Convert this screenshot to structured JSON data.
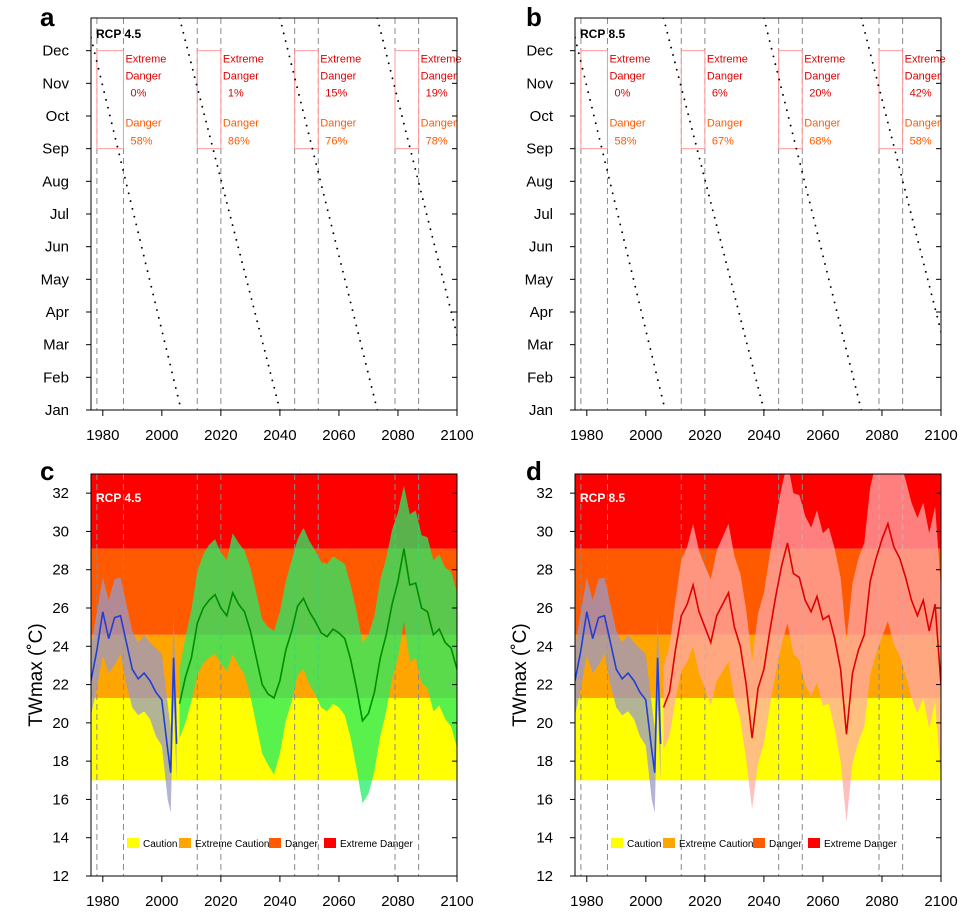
{
  "colors": {
    "caution": "#ffff00",
    "extreme_caution": "#ffa500",
    "danger": "#ff5a00",
    "extreme_danger": "#ff0000",
    "historical_line": "#1f3fd6",
    "historical_band": "#9a9ac8",
    "rcp45_line": "#008c00",
    "rcp45_band": "#22ee66",
    "rcp85_line": "#e00000",
    "rcp85_band": "#ffaaaa",
    "annotation_box": "#ff9a9a",
    "extreme_danger_text": "#e00000",
    "danger_text": "#ff5a00"
  },
  "chart_data": [
    {
      "panel": "a",
      "type": "scatter",
      "title": "RCP 4.5",
      "x_ticks": [
        "1980",
        "2000",
        "2020",
        "2040",
        "2060",
        "2080",
        "2100"
      ],
      "y_ticks": [
        "Jan",
        "Feb",
        "Mar",
        "Apr",
        "May",
        "Jun",
        "Jul",
        "Aug",
        "Sep",
        "Oct",
        "Nov",
        "Dec"
      ],
      "xlim": [
        1976,
        2100
      ],
      "ylim": [
        0,
        12
      ],
      "dashed_x": [
        1978,
        1987,
        2012,
        2020,
        2045,
        2053,
        2079,
        2087
      ],
      "boxes": [
        {
          "x": [
            1978,
            1987
          ],
          "extreme_danger_label": "Extreme\nDanger",
          "extreme_danger": "0%",
          "danger_label": "Danger",
          "danger": "58%"
        },
        {
          "x": [
            2012,
            2020
          ],
          "extreme_danger_label": "Extreme\nDanger",
          "extreme_danger": "1%",
          "danger_label": "Danger",
          "danger": "86%"
        },
        {
          "x": [
            2045,
            2053
          ],
          "extreme_danger_label": "Extreme\nDanger",
          "extreme_danger": "15%",
          "danger_label": "Danger",
          "danger": "76%"
        },
        {
          "x": [
            2079,
            2087
          ],
          "extreme_danger_label": "Extreme\nDanger",
          "extreme_danger": "19%",
          "danger_label": "Danger",
          "danger": "78%"
        }
      ],
      "box_y": [
        8,
        11
      ],
      "segments": [
        {
          "x": [
            1976,
            2006
          ],
          "y": [
            11.4,
            0.2
          ]
        },
        {
          "x": [
            2006,
            2040
          ],
          "y": [
            12.0,
            0.0
          ]
        },
        {
          "x": [
            2040,
            2073
          ],
          "y": [
            12.0,
            0.0
          ]
        },
        {
          "x": [
            2073,
            2100
          ],
          "y": [
            12.0,
            2.3
          ]
        }
      ]
    },
    {
      "panel": "b",
      "type": "scatter",
      "title": "RCP 8.5",
      "x_ticks": [
        "1980",
        "2000",
        "2020",
        "2040",
        "2060",
        "2080",
        "2100"
      ],
      "y_ticks": [
        "Jan",
        "Feb",
        "Mar",
        "Apr",
        "May",
        "Jun",
        "Jul",
        "Aug",
        "Sep",
        "Oct",
        "Nov",
        "Dec"
      ],
      "xlim": [
        1976,
        2100
      ],
      "ylim": [
        0,
        12
      ],
      "dashed_x": [
        1978,
        1987,
        2012,
        2020,
        2045,
        2053,
        2079,
        2087
      ],
      "boxes": [
        {
          "x": [
            1978,
            1987
          ],
          "extreme_danger_label": "Extreme\nDanger",
          "extreme_danger": "0%",
          "danger_label": "Danger",
          "danger": "58%"
        },
        {
          "x": [
            2012,
            2020
          ],
          "extreme_danger_label": "Extreme\nDanger",
          "extreme_danger": "6%",
          "danger_label": "Danger",
          "danger": "67%"
        },
        {
          "x": [
            2045,
            2053
          ],
          "extreme_danger_label": "Extreme\nDanger",
          "extreme_danger": "20%",
          "danger_label": "Danger",
          "danger": "68%"
        },
        {
          "x": [
            2079,
            2087
          ],
          "extreme_danger_label": "Extreme\nDanger",
          "extreme_danger": "42%",
          "danger_label": "Danger",
          "danger": "58%"
        }
      ],
      "box_y": [
        8,
        11
      ],
      "segments": [
        {
          "x": [
            1976,
            2006
          ],
          "y": [
            11.4,
            0.2
          ]
        },
        {
          "x": [
            2006,
            2040
          ],
          "y": [
            12.0,
            0.0
          ]
        },
        {
          "x": [
            2040,
            2073
          ],
          "y": [
            12.0,
            0.0
          ]
        },
        {
          "x": [
            2073,
            2100
          ],
          "y": [
            12.0,
            2.4
          ]
        }
      ]
    },
    {
      "panel": "c",
      "type": "line",
      "title": "RCP 4.5",
      "ylabel": "TWmax (˚C)",
      "x_ticks": [
        "1980",
        "2000",
        "2020",
        "2040",
        "2060",
        "2080",
        "2100"
      ],
      "y_ticks": [
        "12",
        "14",
        "16",
        "18",
        "20",
        "22",
        "24",
        "26",
        "28",
        "30",
        "32"
      ],
      "xlim": [
        1976,
        2100
      ],
      "ylim": [
        12,
        33
      ],
      "dashed_x": [
        1978,
        1987,
        2012,
        2020,
        2045,
        2053,
        2079,
        2087
      ],
      "bands": [
        {
          "name": "Caution",
          "y": [
            17.0,
            21.3
          ],
          "color_key": "caution"
        },
        {
          "name": "Extreme Caution",
          "y": [
            21.3,
            24.6
          ],
          "color_key": "extreme_caution"
        },
        {
          "name": "Danger",
          "y": [
            24.6,
            29.1
          ],
          "color_key": "danger"
        },
        {
          "name": "Extreme Danger",
          "y": [
            29.1,
            33.0
          ],
          "color_key": "extreme_danger"
        }
      ],
      "legend": [
        "Caution",
        "Extreme Caution",
        "Danger",
        "Extreme Danger"
      ],
      "series": [
        {
          "color_key": "historical_line",
          "band_key": "historical_band",
          "x": [
            1976,
            1978,
            1980,
            1982,
            1984,
            1986,
            1988,
            1990,
            1992,
            1994,
            1996,
            1998,
            2000,
            2002,
            2003,
            2004,
            2005
          ],
          "y": [
            22.2,
            23.8,
            25.8,
            24.4,
            25.5,
            25.6,
            24.2,
            22.8,
            22.3,
            22.6,
            22.2,
            21.6,
            21.2,
            18.6,
            17.4,
            23.4,
            18.9
          ],
          "low": [
            20.4,
            21.8,
            23.5,
            22.6,
            23.0,
            23.6,
            22.0,
            20.8,
            20.4,
            20.6,
            20.2,
            19.3,
            18.8,
            16.0,
            15.3,
            21.2,
            16.9
          ],
          "high": [
            24.0,
            25.8,
            27.6,
            26.4,
            27.5,
            27.6,
            26.2,
            24.8,
            24.2,
            24.6,
            24.2,
            23.9,
            23.6,
            21.0,
            19.7,
            25.6,
            21.0
          ]
        },
        {
          "color_key": "rcp45_line",
          "band_key": "rcp45_band",
          "x": [
            2006,
            2008,
            2010,
            2012,
            2014,
            2016,
            2018,
            2020,
            2022,
            2024,
            2026,
            2028,
            2030,
            2032,
            2034,
            2036,
            2038,
            2040,
            2042,
            2044,
            2046,
            2048,
            2050,
            2052,
            2054,
            2056,
            2058,
            2060,
            2062,
            2064,
            2066,
            2068,
            2070,
            2072,
            2074,
            2076,
            2078,
            2080,
            2082,
            2084,
            2086,
            2088,
            2090,
            2092,
            2094,
            2096,
            2098,
            2100
          ],
          "y": [
            21.0,
            22.4,
            23.4,
            25.2,
            26.0,
            26.4,
            26.7,
            26.0,
            25.6,
            26.8,
            26.2,
            25.8,
            24.8,
            23.4,
            22.0,
            21.5,
            21.3,
            22.2,
            23.8,
            24.8,
            26.1,
            26.5,
            25.8,
            25.3,
            24.7,
            24.5,
            24.9,
            24.7,
            24.4,
            23.3,
            21.8,
            20.1,
            20.5,
            21.6,
            23.4,
            24.6,
            26.2,
            27.4,
            29.1,
            27.2,
            27.3,
            26.0,
            25.8,
            24.6,
            24.9,
            24.2,
            23.9,
            22.8
          ],
          "low": [
            19.2,
            20.0,
            21.1,
            22.5,
            23.1,
            23.4,
            23.6,
            23.1,
            22.7,
            23.6,
            23.0,
            22.5,
            21.4,
            19.9,
            18.4,
            17.8,
            17.3,
            18.4,
            20.1,
            21.1,
            22.5,
            22.8,
            22.0,
            21.5,
            20.8,
            20.6,
            21.0,
            20.8,
            20.4,
            19.2,
            17.6,
            15.8,
            16.3,
            17.5,
            19.3,
            20.6,
            22.3,
            23.4,
            25.3,
            23.2,
            23.4,
            22.1,
            21.8,
            20.6,
            20.9,
            20.2,
            19.8,
            18.7
          ],
          "high": [
            22.8,
            24.5,
            25.9,
            27.9,
            28.8,
            29.3,
            29.6,
            28.9,
            28.5,
            29.9,
            29.4,
            29.0,
            28.1,
            26.8,
            25.4,
            25.0,
            24.8,
            25.8,
            27.4,
            28.5,
            29.6,
            30.2,
            29.5,
            29.0,
            28.4,
            28.3,
            28.7,
            28.5,
            28.3,
            27.2,
            25.8,
            24.2,
            24.6,
            25.6,
            27.5,
            28.6,
            30.1,
            31.0,
            32.4,
            30.9,
            31.1,
            29.8,
            29.7,
            28.5,
            28.8,
            28.1,
            27.9,
            26.8
          ]
        }
      ]
    },
    {
      "panel": "d",
      "type": "line",
      "title": "RCP 8.5",
      "ylabel": "TWmax (˚C)",
      "x_ticks": [
        "1980",
        "2000",
        "2020",
        "2040",
        "2060",
        "2080",
        "2100"
      ],
      "y_ticks": [
        "12",
        "14",
        "16",
        "18",
        "20",
        "22",
        "24",
        "26",
        "28",
        "30",
        "32"
      ],
      "xlim": [
        1976,
        2100
      ],
      "ylim": [
        12,
        33
      ],
      "dashed_x": [
        1978,
        1987,
        2012,
        2020,
        2045,
        2053,
        2079,
        2087
      ],
      "bands": [
        {
          "name": "Caution",
          "y": [
            17.0,
            21.3
          ],
          "color_key": "caution"
        },
        {
          "name": "Extreme Caution",
          "y": [
            21.3,
            24.6
          ],
          "color_key": "extreme_caution"
        },
        {
          "name": "Danger",
          "y": [
            24.6,
            29.1
          ],
          "color_key": "danger"
        },
        {
          "name": "Extreme Danger",
          "y": [
            29.1,
            33.0
          ],
          "color_key": "extreme_danger"
        }
      ],
      "legend": [
        "Caution",
        "Extreme Caution",
        "Danger",
        "Extreme Danger"
      ],
      "series": [
        {
          "color_key": "historical_line",
          "band_key": "historical_band",
          "x": [
            1976,
            1978,
            1980,
            1982,
            1984,
            1986,
            1988,
            1990,
            1992,
            1994,
            1996,
            1998,
            2000,
            2002,
            2003,
            2004,
            2005
          ],
          "y": [
            22.2,
            23.8,
            25.8,
            24.4,
            25.5,
            25.6,
            24.2,
            22.8,
            22.3,
            22.6,
            22.2,
            21.6,
            21.2,
            18.6,
            17.4,
            23.4,
            18.9
          ],
          "low": [
            20.4,
            21.8,
            23.5,
            22.6,
            23.0,
            23.6,
            22.0,
            20.8,
            20.4,
            20.6,
            20.2,
            19.3,
            18.8,
            16.0,
            15.3,
            21.2,
            16.9
          ],
          "high": [
            24.0,
            25.8,
            27.6,
            26.4,
            27.5,
            27.6,
            26.2,
            24.8,
            24.2,
            24.6,
            24.2,
            23.9,
            23.6,
            21.0,
            19.7,
            25.6,
            21.0
          ]
        },
        {
          "color_key": "rcp85_line",
          "band_key": "rcp85_band",
          "x": [
            2006,
            2008,
            2010,
            2012,
            2014,
            2016,
            2018,
            2020,
            2022,
            2024,
            2026,
            2028,
            2030,
            2032,
            2034,
            2036,
            2038,
            2040,
            2042,
            2044,
            2046,
            2048,
            2050,
            2052,
            2054,
            2056,
            2058,
            2060,
            2062,
            2064,
            2066,
            2068,
            2070,
            2072,
            2074,
            2076,
            2078,
            2080,
            2082,
            2084,
            2086,
            2088,
            2090,
            2092,
            2094,
            2096,
            2098,
            2100
          ],
          "y": [
            20.8,
            21.6,
            23.8,
            25.6,
            26.2,
            27.2,
            25.8,
            25.0,
            24.2,
            25.6,
            26.2,
            26.8,
            25.0,
            24.0,
            22.0,
            19.2,
            21.8,
            22.8,
            24.8,
            26.6,
            28.2,
            29.4,
            27.8,
            27.6,
            26.4,
            25.8,
            26.6,
            25.4,
            25.6,
            24.4,
            22.8,
            19.4,
            22.6,
            23.8,
            24.6,
            27.4,
            28.6,
            29.6,
            30.4,
            29.2,
            28.6,
            27.6,
            26.4,
            25.6,
            26.4,
            24.8,
            26.2,
            22.0
          ],
          "low": [
            18.6,
            19.3,
            21.2,
            22.7,
            23.2,
            24.0,
            22.6,
            21.8,
            20.9,
            22.2,
            22.7,
            23.2,
            21.3,
            20.2,
            18.1,
            15.5,
            17.9,
            18.9,
            20.9,
            22.6,
            24.1,
            25.2,
            23.6,
            23.3,
            22.0,
            21.4,
            22.1,
            20.9,
            21.0,
            19.7,
            18.0,
            14.8,
            17.9,
            19.0,
            19.8,
            22.5,
            23.6,
            24.5,
            25.3,
            24.1,
            23.5,
            22.5,
            21.3,
            20.5,
            21.3,
            19.7,
            21.1,
            17.0
          ],
          "high": [
            23.0,
            24.0,
            26.4,
            28.5,
            29.2,
            30.4,
            29.0,
            28.2,
            27.5,
            29.0,
            29.7,
            30.4,
            28.7,
            27.8,
            25.9,
            23.2,
            25.7,
            26.8,
            28.8,
            30.6,
            32.3,
            33.6,
            32.0,
            31.9,
            30.8,
            30.2,
            31.1,
            29.9,
            30.2,
            29.1,
            27.6,
            24.3,
            27.3,
            28.6,
            29.4,
            32.3,
            33.6,
            34.7,
            35.5,
            34.3,
            33.7,
            32.7,
            31.5,
            30.7,
            31.5,
            29.9,
            31.3,
            27.0
          ]
        }
      ]
    }
  ]
}
